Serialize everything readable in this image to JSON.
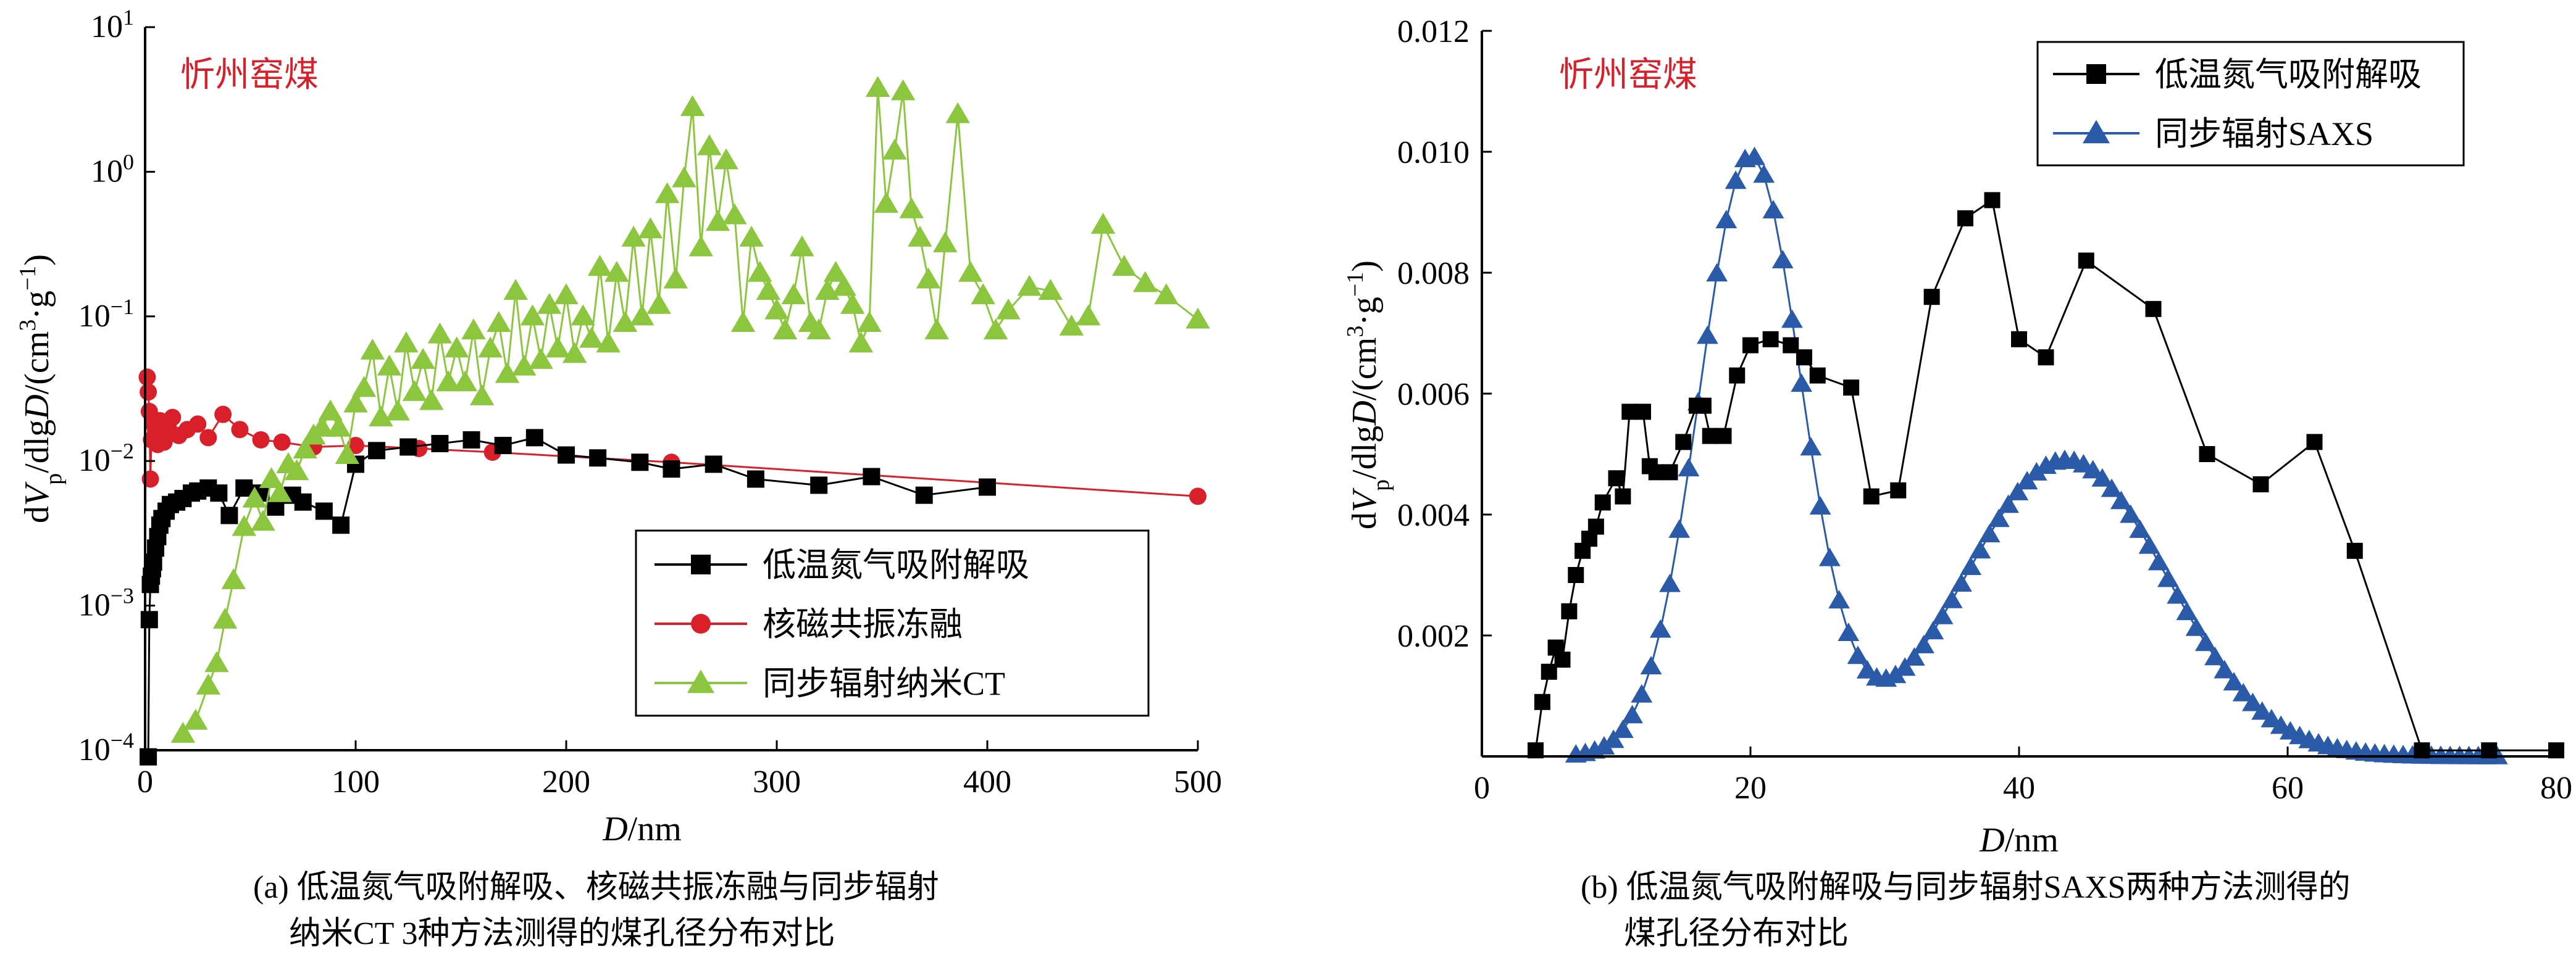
{
  "chart_data": [
    {
      "type": "scatter",
      "id": "a",
      "annotation": "忻州窑煤",
      "xlabel_italic": "D",
      "xlabel_unit": "/nm",
      "ylabel": "dVp/dlgD/(cm³·g⁻¹)",
      "xlim": [
        0,
        500
      ],
      "ylim": [
        0.0001,
        10
      ],
      "yscale": "log",
      "xticks": [
        0,
        100,
        200,
        300,
        400,
        500
      ],
      "yticks": [
        {
          "value": 0.0001,
          "exp": "−4"
        },
        {
          "value": 0.001,
          "exp": "−3"
        },
        {
          "value": 0.01,
          "exp": "−2"
        },
        {
          "value": 0.1,
          "exp": "−1"
        },
        {
          "value": 1,
          "exp": "0"
        },
        {
          "value": 10,
          "exp": "1"
        }
      ],
      "legend_position": "lower-right",
      "series": [
        {
          "name": "低温氮气吸附解吸",
          "color": "#000000",
          "marker": "square",
          "x": [
            1.5,
            2,
            2.5,
            3,
            3.5,
            4,
            5,
            6,
            7,
            8,
            10,
            12,
            15,
            18,
            22,
            25,
            30,
            35,
            40,
            47,
            55,
            62,
            70,
            75,
            85,
            93,
            100,
            110,
            125,
            140,
            155,
            170,
            185,
            200,
            215,
            235,
            250,
            270,
            290,
            320,
            345,
            370,
            400
          ],
          "y": [
            9e-05,
            0.0008,
            0.0014,
            0.0016,
            0.0018,
            0.002,
            0.0025,
            0.003,
            0.0036,
            0.004,
            0.0045,
            0.005,
            0.0052,
            0.0055,
            0.006,
            0.0062,
            0.0065,
            0.006,
            0.0042,
            0.0065,
            0.006,
            0.0048,
            0.0058,
            0.0052,
            0.0045,
            0.0036,
            0.0095,
            0.0118,
            0.0125,
            0.0132,
            0.014,
            0.0128,
            0.0145,
            0.011,
            0.0105,
            0.0098,
            0.0088,
            0.0095,
            0.0075,
            0.0068,
            0.0078,
            0.0058,
            0.0066
          ]
        },
        {
          "name": "核磁共振冻融",
          "color": "#d9202a",
          "marker": "circle",
          "x": [
            1,
            1.5,
            2,
            2.5,
            3,
            4,
            5,
            6,
            7,
            9,
            11,
            13,
            16,
            20,
            25,
            30,
            37,
            45,
            55,
            65,
            80,
            100,
            130,
            165,
            250,
            500
          ],
          "y": [
            0.038,
            0.03,
            0.022,
            0.0075,
            0.014,
            0.018,
            0.016,
            0.013,
            0.019,
            0.0135,
            0.017,
            0.02,
            0.015,
            0.0165,
            0.018,
            0.0145,
            0.021,
            0.0165,
            0.014,
            0.0135,
            0.0125,
            0.0128,
            0.0122,
            0.0115,
            0.0098,
            0.0057
          ]
        },
        {
          "name": "同步辐射纳米CT",
          "color": "#8cc63e",
          "marker": "triangle",
          "x": [
            18,
            24,
            30,
            34,
            38,
            42,
            47,
            52,
            56,
            60,
            64,
            68,
            72,
            76,
            80,
            84,
            88,
            92,
            96,
            100,
            104,
            108,
            112,
            116,
            120,
            124,
            128,
            132,
            136,
            140,
            144,
            148,
            152,
            156,
            160,
            164,
            168,
            172,
            176,
            180,
            184,
            188,
            192,
            196,
            200,
            204,
            208,
            212,
            216,
            220,
            224,
            228,
            232,
            236,
            240,
            244,
            248,
            252,
            256,
            260,
            264,
            268,
            272,
            276,
            280,
            284,
            288,
            292,
            296,
            300,
            304,
            308,
            312,
            316,
            320,
            324,
            328,
            332,
            336,
            340,
            344,
            348,
            352,
            356,
            360,
            364,
            368,
            372,
            376,
            380,
            386,
            392,
            398,
            404,
            410,
            420,
            430,
            440,
            448,
            455,
            465,
            475,
            485,
            500
          ],
          "y": [
            0.00013,
            0.00016,
            0.00028,
            0.0004,
            0.0008,
            0.0015,
            0.0035,
            0.0055,
            0.0038,
            0.0075,
            0.006,
            0.0095,
            0.0085,
            0.012,
            0.015,
            0.017,
            0.022,
            0.017,
            0.011,
            0.025,
            0.032,
            0.058,
            0.02,
            0.045,
            0.022,
            0.065,
            0.03,
            0.05,
            0.026,
            0.075,
            0.035,
            0.06,
            0.035,
            0.08,
            0.028,
            0.06,
            0.09,
            0.04,
            0.15,
            0.045,
            0.1,
            0.05,
            0.12,
            0.06,
            0.14,
            0.055,
            0.1,
            0.07,
            0.22,
            0.065,
            0.2,
            0.09,
            0.35,
            0.1,
            0.4,
            0.12,
            0.7,
            0.18,
            0.9,
            2.8,
            0.3,
            1.5,
            0.45,
            1.2,
            0.5,
            0.09,
            0.35,
            0.2,
            0.15,
            0.11,
            0.08,
            0.14,
            0.3,
            0.09,
            0.08,
            0.15,
            0.2,
            0.16,
            0.12,
            0.065,
            0.09,
            3.8,
            0.6,
            1.4,
            3.6,
            0.55,
            0.35,
            0.18,
            0.08,
            0.32,
            2.5,
            0.2,
            0.14,
            0.08,
            0.11,
            0.16,
            0.15,
            0.085,
            0.1,
            0.43,
            0.22,
            0.17,
            0.14,
            0.095
          ]
        }
      ]
    },
    {
      "type": "line",
      "id": "b",
      "annotation": "忻州窑煤",
      "xlabel_italic": "D",
      "xlabel_unit": "/nm",
      "ylabel": "dVp/dlgD/(cm³·g⁻¹)",
      "xlim": [
        0,
        80
      ],
      "ylim": [
        0,
        0.012
      ],
      "xticks": [
        0,
        20,
        40,
        60,
        80
      ],
      "yticks": [
        "0.002",
        "0.004",
        "0.006",
        "0.008",
        "0.010",
        "0.012"
      ],
      "legend_position": "top-right",
      "series": [
        {
          "name": "低温氮气吸附解吸",
          "color": "#000000",
          "marker": "square",
          "x": [
            4,
            4.5,
            5,
            5.5,
            6,
            6.5,
            7,
            7.5,
            8,
            8.5,
            9,
            10,
            10.5,
            11,
            12,
            12.5,
            13,
            14,
            15,
            16,
            16.5,
            17,
            18,
            19,
            20,
            21.5,
            23,
            24,
            25,
            27.5,
            29,
            31,
            33.5,
            36,
            38,
            40,
            42,
            45,
            50,
            54,
            58,
            62,
            65,
            70,
            75,
            80
          ],
          "y": [
            0.0001,
            0.0009,
            0.0014,
            0.0018,
            0.0016,
            0.0024,
            0.003,
            0.0034,
            0.0036,
            0.0038,
            0.0042,
            0.0046,
            0.0043,
            0.0057,
            0.0057,
            0.0048,
            0.0047,
            0.0047,
            0.0052,
            0.0058,
            0.0058,
            0.0053,
            0.0053,
            0.0063,
            0.0068,
            0.0069,
            0.0068,
            0.0066,
            0.0063,
            0.0061,
            0.0043,
            0.0044,
            0.0076,
            0.0089,
            0.0092,
            0.0069,
            0.0066,
            0.0082,
            0.0074,
            0.005,
            0.0045,
            0.0052,
            0.0034,
            0.0001,
            0.0001,
            0.0001
          ]
        },
        {
          "name": "同步辐射SAXS",
          "color": "#2a5aa8",
          "marker": "triangle",
          "peaks": [
            {
              "center": 20,
              "height": 0.0099,
              "sigma": 3.8
            },
            {
              "center": 43.5,
              "height": 0.0049,
              "sigma": 7.5
            }
          ],
          "shoulder": 0.0036,
          "x_start": 7,
          "x_end": 76,
          "x_step": 0.7
        }
      ]
    }
  ],
  "captions": {
    "a_line1": "(a) 低温氮气吸附解吸、核磁共振冻融与同步辐射",
    "a_line2": "纳米CT 3种方法测得的煤孔径分布对比",
    "b_line1": "(b) 低温氮气吸附解吸与同步辐射SAXS两种方法测得的",
    "b_line2": "煤孔径分布对比"
  }
}
